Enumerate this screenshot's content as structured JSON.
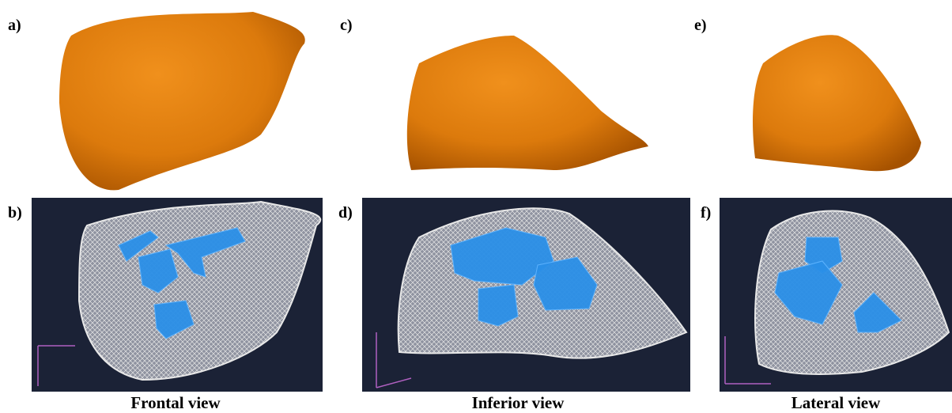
{
  "columns": [
    {
      "top_label": "a)",
      "bottom_label": "b)",
      "caption": "Frontal view"
    },
    {
      "top_label": "c)",
      "bottom_label": "d)",
      "caption": "Inferior view"
    },
    {
      "top_label": "e)",
      "bottom_label": "f)",
      "caption": "Lateral view"
    }
  ]
}
